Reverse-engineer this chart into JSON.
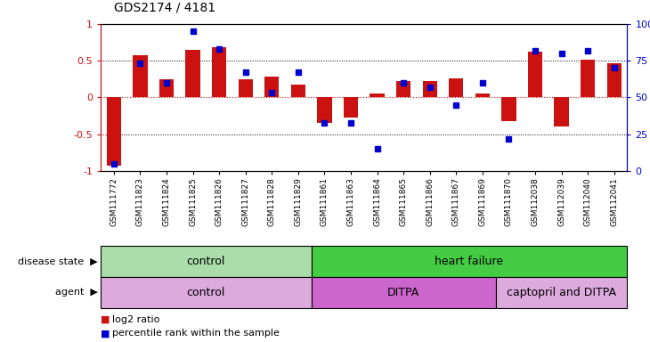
{
  "title": "GDS2174 / 4181",
  "samples": [
    "GSM111772",
    "GSM111823",
    "GSM111824",
    "GSM111825",
    "GSM111826",
    "GSM111827",
    "GSM111828",
    "GSM111829",
    "GSM111861",
    "GSM111863",
    "GSM111864",
    "GSM111865",
    "GSM111866",
    "GSM111867",
    "GSM111869",
    "GSM111870",
    "GSM112038",
    "GSM112039",
    "GSM112040",
    "GSM112041"
  ],
  "log2_ratio": [
    -0.93,
    0.58,
    0.25,
    0.65,
    0.68,
    0.25,
    0.28,
    0.18,
    -0.35,
    -0.27,
    0.05,
    0.22,
    0.22,
    0.26,
    0.05,
    -0.32,
    0.62,
    -0.4,
    0.52,
    0.47
  ],
  "percentile_rank": [
    5,
    73,
    60,
    95,
    83,
    67,
    53,
    67,
    33,
    33,
    15,
    60,
    57,
    45,
    60,
    22,
    82,
    80,
    82,
    70
  ],
  "bar_color": "#cc1111",
  "dot_color": "#0000cc",
  "disease_state_groups": [
    {
      "label": "control",
      "start": 0,
      "end": 8,
      "color": "#aaddaa"
    },
    {
      "label": "heart failure",
      "start": 8,
      "end": 20,
      "color": "#44cc44"
    }
  ],
  "agent_groups": [
    {
      "label": "control",
      "start": 0,
      "end": 8,
      "color": "#ddaadd"
    },
    {
      "label": "DITPA",
      "start": 8,
      "end": 15,
      "color": "#cc66cc"
    },
    {
      "label": "captopril and DITPA",
      "start": 15,
      "end": 20,
      "color": "#ddaadd"
    }
  ],
  "legend_bar_label": "log2 ratio",
  "legend_dot_label": "percentile rank within the sample",
  "bg_color": "#ffffff"
}
